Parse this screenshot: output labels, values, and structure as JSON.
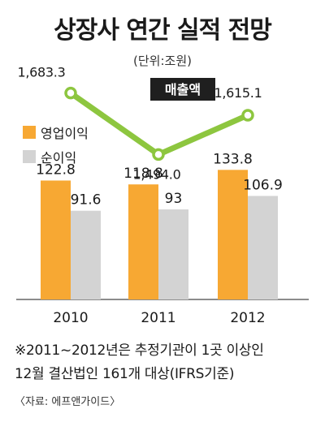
{
  "title": "상장사 연간 실적 전망",
  "unit": "(단위:조원)",
  "colors": {
    "operating": "#F7A833",
    "net": "#D3D3D3",
    "sales_line": "#8DC63F",
    "sales_label_bg": "#1F1F1F",
    "axis": "#666666"
  },
  "chart_data": {
    "type": "bar",
    "categories": [
      "2010",
      "2011",
      "2012"
    ],
    "series": [
      {
        "name": "영업이익",
        "type": "bar",
        "values": [
          122.8,
          118.8,
          133.8
        ],
        "labels": [
          "122.8",
          "118.8",
          "133.8"
        ]
      },
      {
        "name": "순이익",
        "type": "bar",
        "values": [
          91.6,
          93,
          106.9
        ],
        "labels": [
          "91.6",
          "93",
          "106.9"
        ]
      },
      {
        "name": "매출액",
        "type": "line",
        "values": [
          1683.3,
          1494.0,
          1615.1
        ],
        "labels": [
          "1,683.3",
          "1,494.0",
          "1,615.1"
        ]
      }
    ],
    "bar_ylim": [
      0,
      150
    ],
    "line_ylim": [
      1400,
      1720
    ],
    "legend": [
      "영업이익",
      "순이익"
    ],
    "line_label": "매출액",
    "legend_position": "left",
    "grid": false
  },
  "footnote_line1": "※2011~2012년은 추정기관이 1곳 이상인",
  "footnote_line2": "12월 결산법인 161개 대상(IFRS기준)",
  "source": "〈자료: 에프앤가이드〉"
}
